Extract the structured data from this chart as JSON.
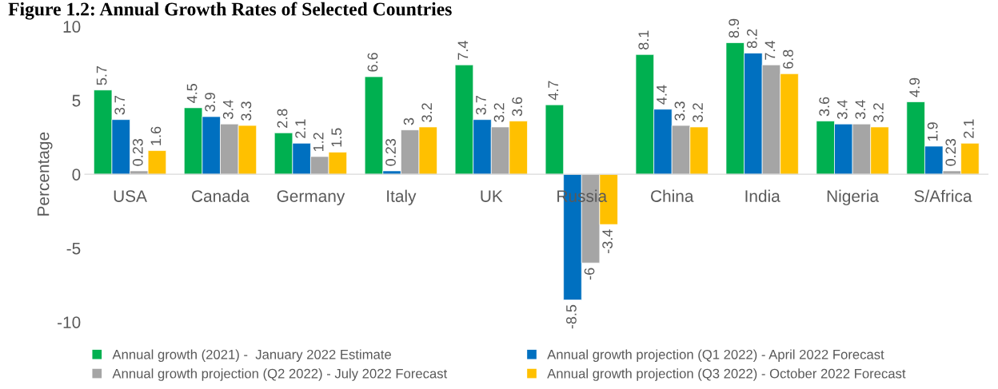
{
  "chart_data": {
    "type": "bar",
    "title": "Figure 1.2: Annual Growth Rates of Selected Countries",
    "ylabel": "Percentage",
    "categories": [
      "USA",
      "Canada",
      "Germany",
      "Italy",
      "UK",
      "Russia",
      "China",
      "India",
      "Nigeria",
      "S/Africa"
    ],
    "series": [
      {
        "name": "Annual growth (2021) -  January 2022 Estimate",
        "color": "#00b050",
        "values": [
          5.7,
          4.5,
          2.8,
          6.6,
          7.4,
          4.7,
          8.1,
          8.9,
          3.6,
          4.9
        ]
      },
      {
        "name": "Annual growth projection (Q1 2022) - April 2022 Forecast",
        "color": "#0070c0",
        "values": [
          3.7,
          3.9,
          2.1,
          0.23,
          3.7,
          -8.5,
          4.4,
          8.2,
          3.4,
          1.9
        ]
      },
      {
        "name": "Annual growth projection (Q2 2022) - July 2022 Forecast",
        "color": "#a5a5a5",
        "values": [
          0.23,
          3.4,
          1.2,
          3,
          3.2,
          -6,
          3.3,
          7.4,
          3.4,
          0.23
        ]
      },
      {
        "name": "Annual growth projection (Q3 2022) - October 2022 Forecast",
        "color": "#ffc000",
        "values": [
          1.6,
          3.3,
          1.5,
          3.2,
          3.6,
          -3.4,
          3.2,
          6.8,
          3.2,
          2.1
        ]
      }
    ],
    "ylim": [
      -10,
      10
    ],
    "yticks": [
      -10,
      -5,
      0,
      5,
      10
    ],
    "data_labels": true,
    "legend": "bottom",
    "grid": false
  }
}
